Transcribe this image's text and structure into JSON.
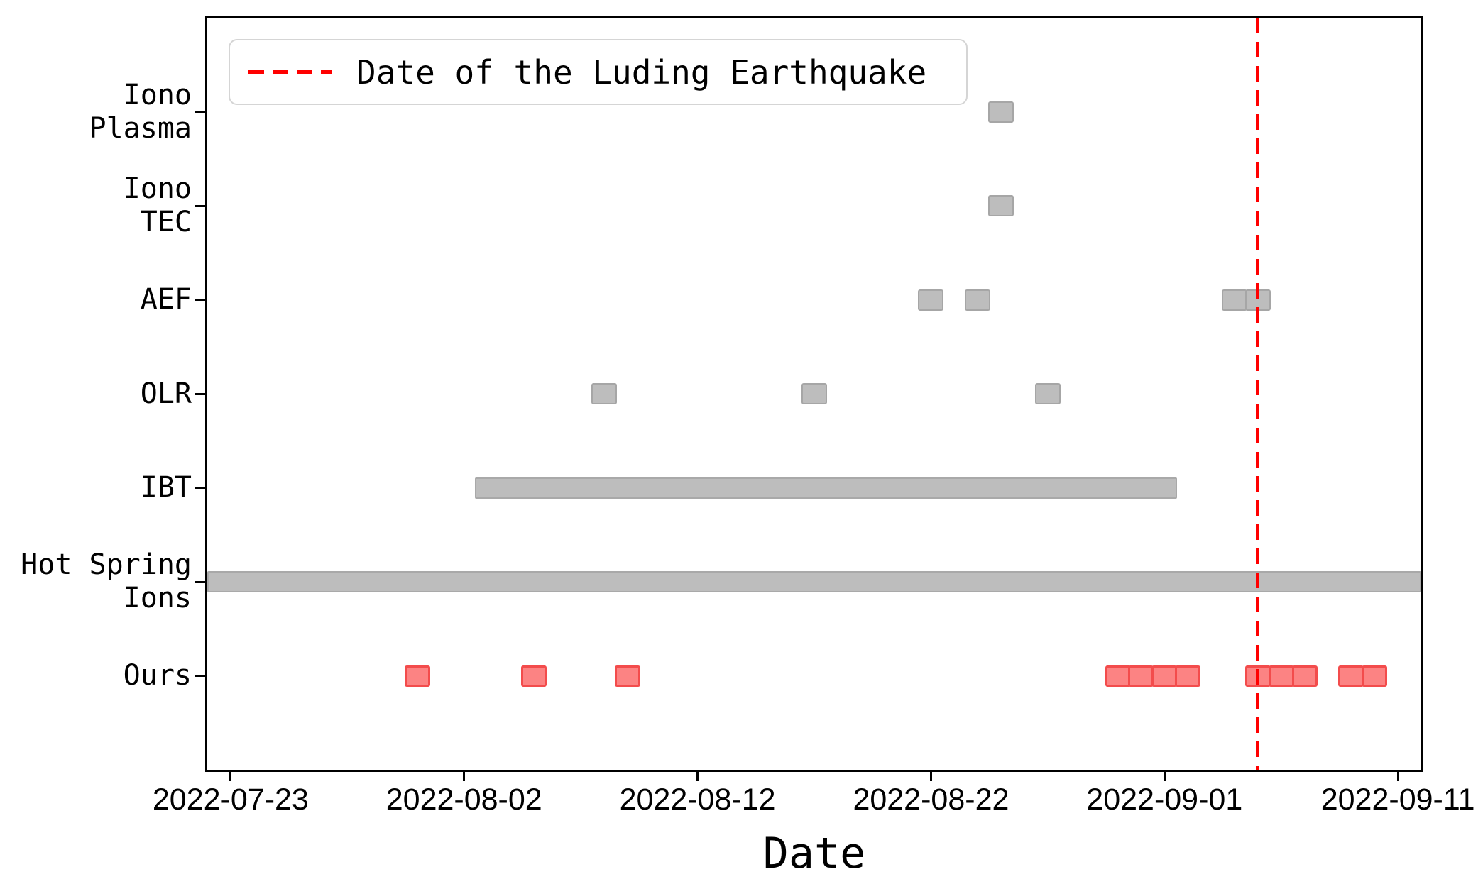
{
  "chart_data": {
    "type": "scatter",
    "subtype": "anomaly-event-timeline",
    "title": "",
    "xlabel": "Date",
    "ylabel": "",
    "grid": false,
    "legend_label": "Date of the Luding Earthquake",
    "legend_position": "upper left",
    "xlim": [
      "2022-07-22",
      "2022-09-12"
    ],
    "x_tick_labels": [
      "2022-07-23",
      "2022-08-02",
      "2022-08-12",
      "2022-08-22",
      "2022-09-01",
      "2022-09-11"
    ],
    "y_categories_top_to_bottom": [
      "Iono Plasma",
      "Iono TEC",
      "AEF",
      "OLR",
      "IBT",
      "Hot Spring Ions",
      "Ours"
    ],
    "earthquake_line": {
      "date": "2022-09-05",
      "color": "#ff0000",
      "style": "dashed"
    },
    "rows": [
      {
        "id": "iono-plasma",
        "label": "Iono Plasma",
        "label_lines": [
          "Iono",
          "Plasma"
        ],
        "color": "gray",
        "anomaly_dates": [
          "2022-08-25"
        ]
      },
      {
        "id": "iono-tec",
        "label": "Iono TEC",
        "label_lines": [
          "Iono",
          "TEC"
        ],
        "color": "gray",
        "anomaly_dates": [
          "2022-08-25"
        ]
      },
      {
        "id": "aef",
        "label": "AEF",
        "label_lines": [
          "AEF"
        ],
        "color": "gray",
        "anomaly_dates": [
          "2022-08-22",
          "2022-08-24",
          "2022-09-04",
          "2022-09-05"
        ]
      },
      {
        "id": "olr",
        "label": "OLR",
        "label_lines": [
          "OLR"
        ],
        "color": "gray",
        "anomaly_dates": [
          "2022-08-08",
          "2022-08-17",
          "2022-08-27"
        ]
      },
      {
        "id": "ibt",
        "label": "IBT",
        "label_lines": [
          "IBT"
        ],
        "color": "gray",
        "anomaly_range": [
          "2022-08-03",
          "2022-09-01"
        ]
      },
      {
        "id": "hot-spring-ions",
        "label": "Hot Spring Ions",
        "label_lines": [
          "Hot Spring",
          "Ions"
        ],
        "color": "gray",
        "anomaly_range": [
          "2022-07-22",
          "2022-09-12"
        ]
      },
      {
        "id": "ours",
        "label": "Ours",
        "label_lines": [
          "Ours"
        ],
        "color": "red",
        "anomaly_dates": [
          "2022-07-31",
          "2022-08-05",
          "2022-08-09",
          "2022-08-30",
          "2022-08-31",
          "2022-09-01",
          "2022-09-02",
          "2022-09-05",
          "2022-09-06",
          "2022-09-07",
          "2022-09-09",
          "2022-09-10"
        ]
      }
    ],
    "colors": {
      "gray_fill": "#bdbdbd",
      "gray_edge": "#a6a6a6",
      "red_fill": "#fc8383",
      "red_edge": "#f34c4c",
      "event_line": "#ff0000",
      "axis": "#000000"
    }
  }
}
